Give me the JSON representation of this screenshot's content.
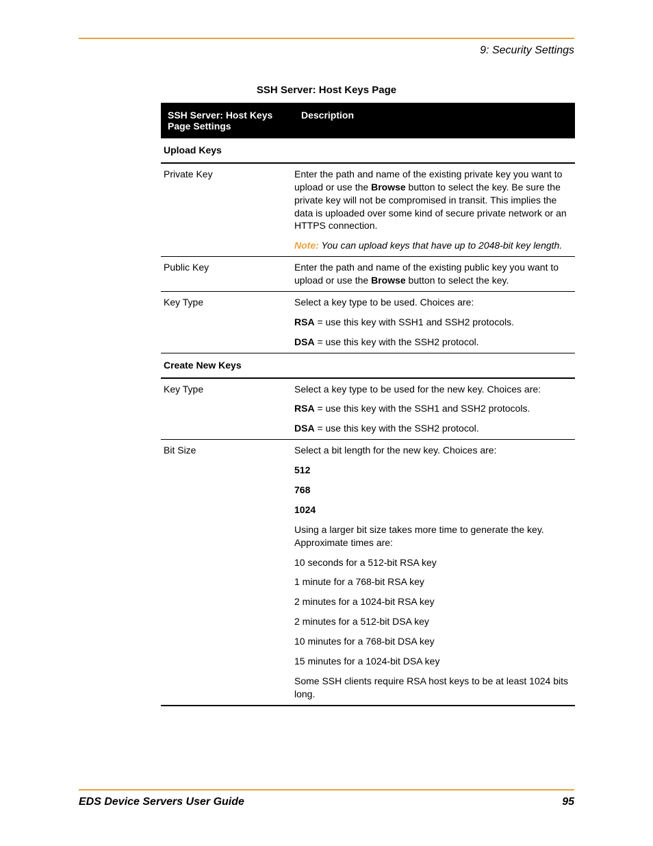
{
  "header": {
    "chapter": "9: Security Settings"
  },
  "table": {
    "title": "SSH Server: Host Keys Page",
    "col1": "SSH Server: Host Keys Page Settings",
    "col2": "Description",
    "section_upload": "Upload Keys",
    "private_key": {
      "label": "Private Key",
      "p1a": "Enter the path and name of the existing private key you want to upload or use the ",
      "p1b": "Browse",
      "p1c": " button to select the key. Be sure the private key will not be compromised in transit. This implies the data is uploaded over some kind of secure private network or an HTTPS connection.",
      "note_label": "Note:",
      "note_text": " You can upload keys that have up to 2048-bit key length."
    },
    "public_key": {
      "label": "Public Key",
      "p1a": "Enter the path and name of the existing public key you want to upload or use the ",
      "p1b": "Browse",
      "p1c": " button to select the key."
    },
    "key_type1": {
      "label": "Key Type",
      "p1": "Select a key type to be used. Choices are:",
      "rsa_b": "RSA",
      "rsa_t": " = use this key with SSH1 and SSH2 protocols.",
      "dsa_b": "DSA",
      "dsa_t": " = use this key with the SSH2 protocol."
    },
    "section_create": "Create New Keys",
    "key_type2": {
      "label": "Key Type",
      "p1": "Select a key type to be used for the new key. Choices are:",
      "rsa_b": "RSA",
      "rsa_t": " = use this key with the SSH1 and SSH2 protocols.",
      "dsa_b": "DSA",
      "dsa_t": " = use this key with the SSH2 protocol."
    },
    "bit_size": {
      "label": "Bit Size",
      "p1": "Select a bit length for the new key. Choices are:",
      "b512": "512",
      "b768": "768",
      "b1024": "1024",
      "p2": "Using a larger bit size takes more time to generate the key. Approximate times are:",
      "t1": "10 seconds for a 512-bit RSA key",
      "t2": "1 minute for a 768-bit RSA key",
      "t3": "2 minutes for a 1024-bit RSA key",
      "t4": "2 minutes for a 512-bit DSA key",
      "t5": "10 minutes for a 768-bit DSA key",
      "t6": "15 minutes for a 1024-bit DSA key",
      "p3": "Some SSH clients require RSA host keys to be at least 1024 bits long."
    }
  },
  "footer": {
    "guide": "EDS Device Servers User Guide",
    "page": "95"
  },
  "colors": {
    "accent": "#e8a23d",
    "text": "#000000",
    "header_bg": "#000000",
    "header_fg": "#ffffff",
    "background": "#ffffff"
  }
}
